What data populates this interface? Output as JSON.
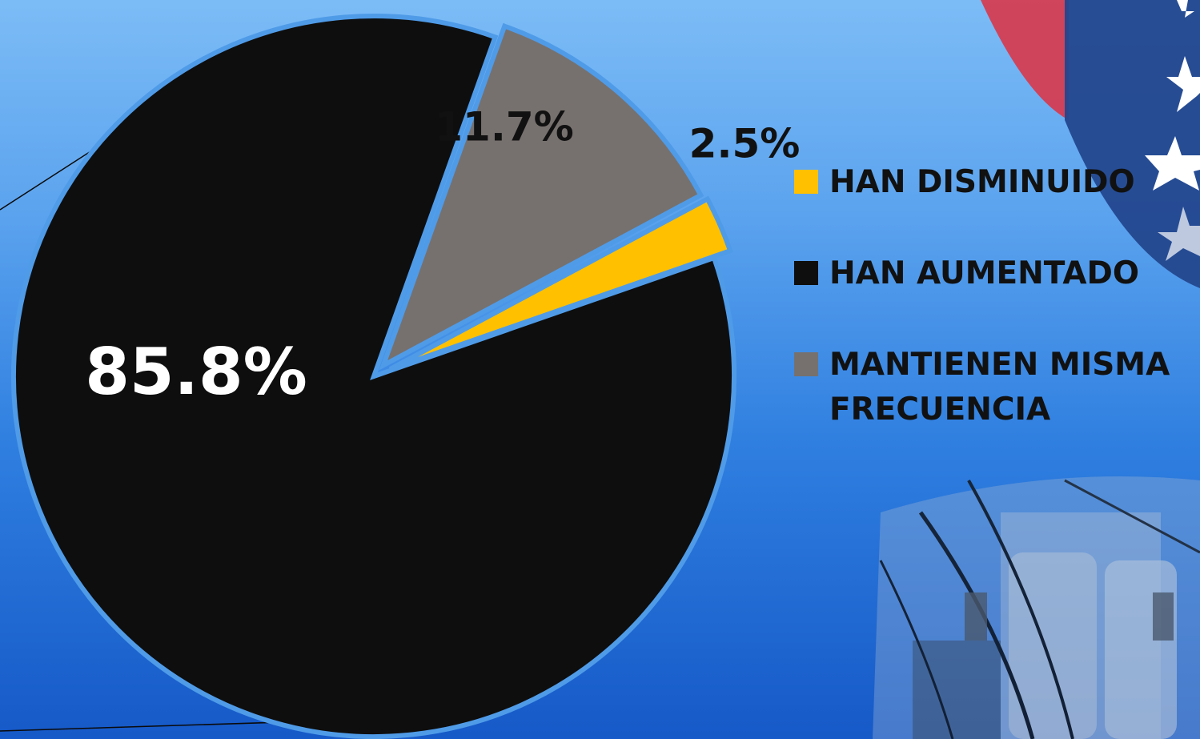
{
  "chart_data": {
    "type": "pie",
    "title": "",
    "slices": [
      {
        "label": "HAN DISMINUIDO",
        "value": 2.5,
        "display": "2.5%",
        "color": "#ffc000"
      },
      {
        "label": "HAN AUMENTADO",
        "value": 85.8,
        "display": "85.8%",
        "color": "#0e0e0e"
      },
      {
        "label": "MANTIENEN MISMA FRECUENCIA",
        "value": 11.7,
        "display": "11.7%",
        "color": "#76716e"
      }
    ],
    "legend_position": "right",
    "label_colors": {
      "HAN AUMENTADO": "#ffffff",
      "MANTIENEN MISMA FRECUENCIA": "#111111",
      "HAN DISMINUIDO": "#111111"
    }
  },
  "background": {
    "gradient": [
      "#7cbcf6",
      "#1659c8"
    ],
    "decoration": [
      "flag-stars-icon",
      "power-transformer-photo"
    ]
  }
}
